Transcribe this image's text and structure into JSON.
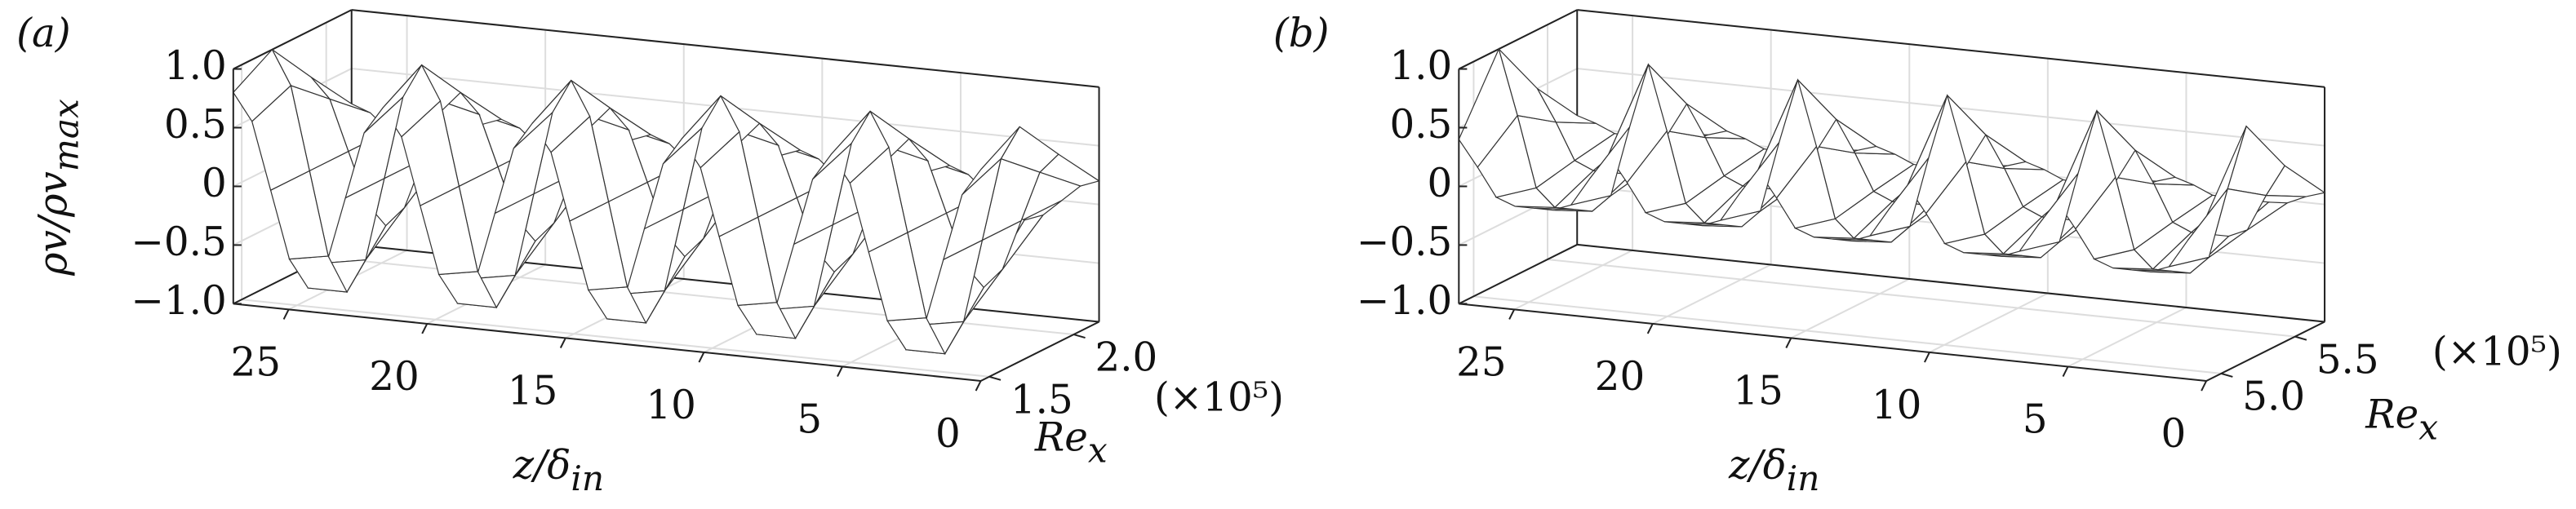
{
  "chart_data": [
    {
      "type": "surface3d",
      "panel_label": "(a)",
      "zlabel": {
        "text": "ρv/ρv",
        "sub": "max"
      },
      "xlabel": {
        "text": "z/δ",
        "sub": "in"
      },
      "ylabel": {
        "text": "Re",
        "sub": "x"
      },
      "ylabel_multiplier": "(×10⁵)",
      "xlim": [
        0,
        27
      ],
      "xticks": [
        0,
        5,
        10,
        15,
        20,
        25
      ],
      "ylim": [
        1.45,
        2.15
      ],
      "yticks": [
        1.5,
        {
          "value": 2,
          "label": "2.0"
        }
      ],
      "zlim": [
        -1,
        1
      ],
      "zticks": [
        {
          "value": -1,
          "label": "−1.0"
        },
        {
          "value": -0.5,
          "label": "−0.5"
        },
        0,
        0.5,
        {
          "value": 1,
          "label": "1.0"
        }
      ],
      "grid": true,
      "x": [
        0,
        0.675,
        1.35,
        2.025,
        2.7,
        3.375,
        4.05,
        4.725,
        5.4,
        6.075,
        6.75,
        7.425,
        8.1,
        8.775,
        9.45,
        10.125,
        10.8,
        11.475,
        12.15,
        12.825,
        13.5,
        14.175,
        14.85,
        15.525,
        16.2,
        16.875,
        17.55,
        18.225,
        18.9,
        19.575,
        20.25,
        20.925,
        21.6,
        22.275,
        22.95,
        23.625,
        24.3,
        24.975,
        25.65,
        26.325,
        27
      ],
      "y": [
        1.45,
        1.68,
        1.91,
        2.15
      ],
      "values": [
        [
          0.8,
          0.57,
          0,
          -0.57,
          -0.8,
          -0.57,
          0,
          0.57,
          0.8,
          0.57,
          0,
          -0.57,
          -0.8,
          -0.57,
          0,
          0.57,
          0.8,
          0.57,
          0,
          -0.57,
          -0.8,
          -0.57,
          0,
          0.57,
          0.8,
          0.57,
          0,
          -0.57,
          -0.8,
          -0.57,
          0,
          0.57,
          0.8,
          0.57,
          0,
          -0.57,
          -0.8,
          -0.57,
          0,
          0.57,
          0.8
        ],
        [
          1,
          0.71,
          0,
          -0.71,
          -1,
          -0.71,
          0,
          0.71,
          1,
          0.71,
          0,
          -0.71,
          -1,
          -0.71,
          0,
          0.71,
          1,
          0.71,
          0,
          -0.71,
          -1,
          -0.71,
          0,
          0.71,
          1,
          0.71,
          0,
          -0.71,
          -1,
          -0.71,
          0,
          0.71,
          1,
          0.71,
          0,
          -0.71,
          -1,
          -0.71,
          0,
          0.71,
          1
        ],
        [
          0.6,
          0.43,
          0,
          -0.43,
          -0.6,
          -0.43,
          0,
          0.43,
          0.6,
          0.43,
          0,
          -0.43,
          -0.6,
          -0.43,
          0,
          0.43,
          0.6,
          0.43,
          0,
          -0.43,
          -0.6,
          -0.43,
          0,
          0.43,
          0.6,
          0.43,
          0,
          -0.43,
          -0.6,
          -0.43,
          0,
          0.43,
          0.6,
          0.43,
          0,
          -0.43,
          -0.6,
          -0.43,
          0,
          0.43,
          0.6
        ],
        [
          0.2,
          0.14,
          0,
          -0.14,
          -0.2,
          -0.14,
          0,
          0.14,
          0.2,
          0.14,
          0,
          -0.14,
          -0.2,
          -0.14,
          0,
          0.14,
          0.2,
          0.14,
          0,
          -0.14,
          -0.2,
          -0.14,
          0,
          0.14,
          0.2,
          0.14,
          0,
          -0.14,
          -0.2,
          -0.14,
          0,
          0.14,
          0.2,
          0.14,
          0,
          -0.14,
          -0.2,
          -0.14,
          0,
          0.14,
          0.2
        ]
      ]
    },
    {
      "type": "surface3d",
      "panel_label": "(b)",
      "xlabel": {
        "text": "z/δ",
        "sub": "in"
      },
      "ylabel": {
        "text": "Re",
        "sub": "x"
      },
      "ylabel_multiplier": "(×10⁵)",
      "xlim": [
        0,
        27
      ],
      "xticks": [
        0,
        5,
        10,
        15,
        20,
        25
      ],
      "ylim": [
        4.9,
        5.7
      ],
      "yticks": [
        {
          "value": 5,
          "label": "5.0"
        },
        5.5
      ],
      "zlim": [
        -1,
        1
      ],
      "zticks": [
        {
          "value": -1,
          "label": "−1.0"
        },
        {
          "value": -0.5,
          "label": "−0.5"
        },
        0,
        0.5,
        {
          "value": 1,
          "label": "1.0"
        }
      ],
      "grid": true,
      "x": [
        0,
        0.675,
        1.35,
        2.025,
        2.7,
        3.375,
        4.05,
        4.725,
        5.4,
        6.075,
        6.75,
        7.425,
        8.1,
        8.775,
        9.45,
        10.125,
        10.8,
        11.475,
        12.15,
        12.825,
        13.5,
        14.175,
        14.85,
        15.525,
        16.2,
        16.875,
        17.55,
        18.225,
        18.9,
        19.575,
        20.25,
        20.925,
        21.6,
        22.275,
        22.95,
        23.625,
        24.3,
        24.975,
        25.65,
        26.325,
        27
      ],
      "y": [
        4.9,
        5.17,
        5.43,
        5.7
      ],
      "values": [
        [
          0.4,
          0.18,
          -0.06,
          -0.12,
          -0.12,
          -0.12,
          -0.06,
          0.18,
          0.4,
          0.18,
          -0.06,
          -0.12,
          -0.12,
          -0.12,
          -0.06,
          0.18,
          0.4,
          0.18,
          -0.06,
          -0.12,
          -0.12,
          -0.12,
          -0.06,
          0.18,
          0.4,
          0.18,
          -0.06,
          -0.12,
          -0.12,
          -0.12,
          -0.06,
          0.18,
          0.4,
          0.18,
          -0.06,
          -0.12,
          -0.12,
          -0.12,
          -0.06,
          0.18,
          0.4
        ],
        [
          1,
          0.45,
          -0.15,
          -0.3,
          -0.3,
          -0.3,
          -0.15,
          0.45,
          1,
          0.45,
          -0.15,
          -0.3,
          -0.3,
          -0.3,
          -0.15,
          0.45,
          1,
          0.45,
          -0.15,
          -0.3,
          -0.3,
          -0.3,
          -0.15,
          0.45,
          1,
          0.45,
          -0.15,
          -0.3,
          -0.3,
          -0.3,
          -0.15,
          0.45,
          1,
          0.45,
          -0.15,
          -0.3,
          -0.3,
          -0.3,
          -0.15,
          0.45,
          1
        ],
        [
          0.5,
          0.23,
          -0.08,
          -0.15,
          -0.15,
          -0.15,
          -0.08,
          0.23,
          0.5,
          0.23,
          -0.08,
          -0.15,
          -0.15,
          -0.15,
          -0.08,
          0.23,
          0.5,
          0.23,
          -0.08,
          -0.15,
          -0.15,
          -0.15,
          -0.08,
          0.23,
          0.5,
          0.23,
          -0.08,
          -0.15,
          -0.15,
          -0.15,
          -0.08,
          0.23,
          0.5,
          0.23,
          -0.08,
          -0.15,
          -0.15,
          -0.15,
          -0.08,
          0.23,
          0.5
        ],
        [
          0.1,
          0.05,
          -0.02,
          -0.03,
          -0.03,
          -0.03,
          -0.02,
          0.05,
          0.1,
          0.05,
          -0.02,
          -0.03,
          -0.03,
          -0.03,
          -0.02,
          0.05,
          0.1,
          0.05,
          -0.02,
          -0.03,
          -0.03,
          -0.03,
          -0.02,
          0.05,
          0.1,
          0.05,
          -0.02,
          -0.03,
          -0.03,
          -0.03,
          -0.02,
          0.05,
          0.1,
          0.05,
          -0.02,
          -0.03,
          -0.03,
          -0.03,
          -0.02,
          0.05,
          0.1
        ]
      ]
    }
  ]
}
